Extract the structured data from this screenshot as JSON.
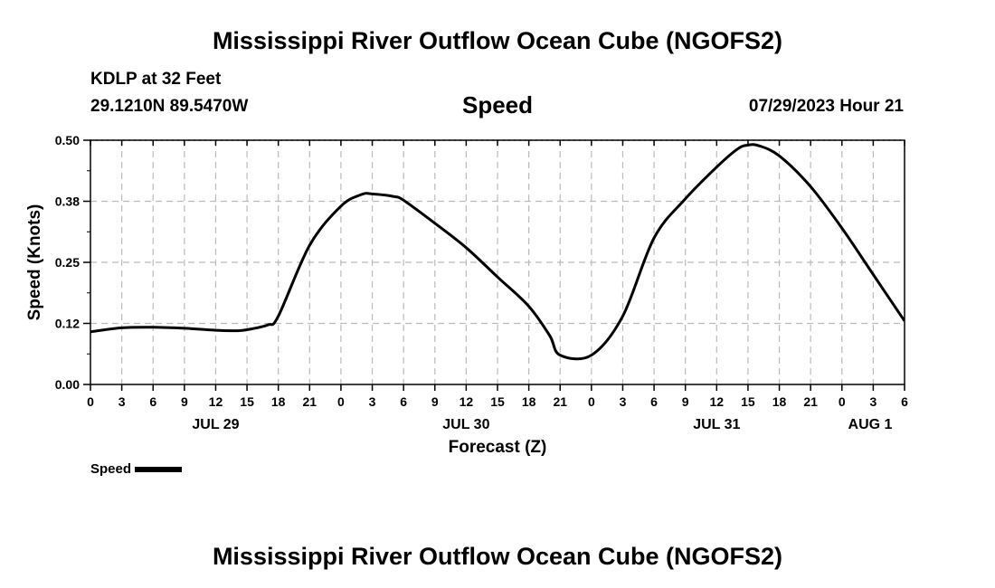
{
  "page": {
    "title": "Mississippi River Outflow Ocean Cube (NGOFS2)",
    "footer_title": "Mississippi River Outflow Ocean Cube (NGOFS2)",
    "station": "KDLP at 32 Feet",
    "coordinates": "29.1210N  89.5470W",
    "variable": "Speed",
    "timestamp": "07/29/2023 Hour 21"
  },
  "colors": {
    "line": "#000000",
    "grid": "#bbbbbb",
    "background": "#ffffff"
  },
  "chart_data": {
    "type": "line",
    "title": "Speed",
    "xlabel": "Forecast (Z)",
    "ylabel": "Speed (Knots)",
    "xlim": [
      0,
      78
    ],
    "ylim": [
      0,
      0.5
    ],
    "y_ticks": [
      0.0,
      0.125,
      0.25,
      0.375,
      0.5
    ],
    "y_tick_labels": [
      "0.00",
      "0.12",
      "0.25",
      "0.38",
      "0.50"
    ],
    "x_ticks": [
      0,
      3,
      6,
      9,
      12,
      15,
      18,
      21,
      24,
      27,
      30,
      33,
      36,
      39,
      42,
      45,
      48,
      51,
      54,
      57,
      60,
      63,
      66,
      69,
      72,
      75,
      78
    ],
    "x_tick_labels": [
      "0",
      "3",
      "6",
      "9",
      "12",
      "15",
      "18",
      "21",
      "0",
      "3",
      "6",
      "9",
      "12",
      "15",
      "18",
      "21",
      "0",
      "3",
      "6",
      "9",
      "12",
      "15",
      "18",
      "21",
      "0",
      "3",
      "6"
    ],
    "date_labels": [
      {
        "hour": 12,
        "label": "JUL 29"
      },
      {
        "hour": 36,
        "label": "JUL 30"
      },
      {
        "hour": 60,
        "label": "JUL 31"
      },
      {
        "hour": 78,
        "label": "AUG 1"
      }
    ],
    "grid": true,
    "legend": {
      "label": "Speed",
      "position": "bottom-left"
    },
    "series": [
      {
        "name": "Speed",
        "x": [
          0,
          3,
          6,
          9,
          12,
          14,
          15,
          17,
          18,
          21,
          24,
          26,
          27,
          29,
          30,
          33,
          36,
          39,
          42,
          44,
          45,
          48,
          51,
          54,
          57,
          60,
          62,
          63,
          64,
          66,
          69,
          72,
          75,
          78
        ],
        "values": [
          0.108,
          0.116,
          0.117,
          0.115,
          0.111,
          0.11,
          0.112,
          0.122,
          0.14,
          0.285,
          0.365,
          0.389,
          0.39,
          0.385,
          0.377,
          0.33,
          0.28,
          0.22,
          0.16,
          0.1,
          0.06,
          0.06,
          0.14,
          0.3,
          0.38,
          0.445,
          0.482,
          0.49,
          0.489,
          0.468,
          0.405,
          0.32,
          0.225,
          0.13
        ]
      }
    ]
  }
}
